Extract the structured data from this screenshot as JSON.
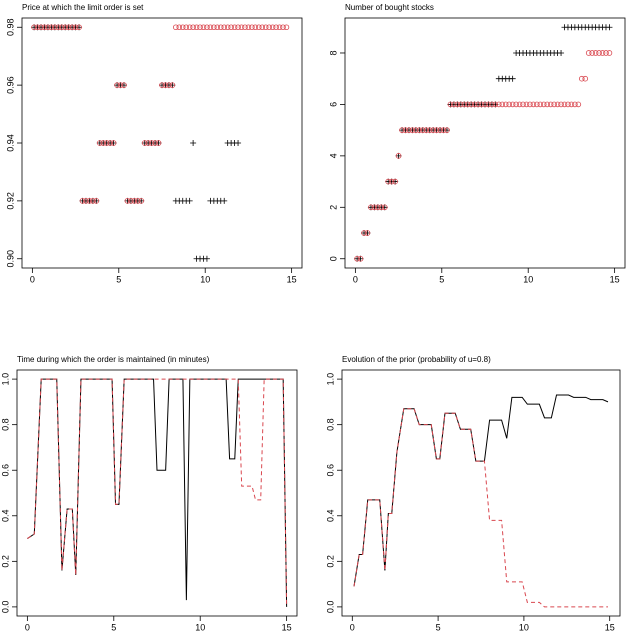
{
  "chart_data": [
    {
      "type": "scatter",
      "title": "Price at which the limit order is set",
      "x": [
        0.1,
        0.3,
        0.5,
        0.7,
        0.9,
        1.1,
        1.3,
        1.5,
        1.7,
        1.9,
        2.1,
        2.3,
        2.5,
        2.7,
        2.9,
        3.1,
        3.3,
        3.5,
        3.7,
        3.9,
        4.1,
        4.3,
        4.5,
        4.7,
        4.9,
        5.1,
        5.3,
        5.5,
        5.7,
        5.9,
        6.1,
        6.3,
        6.5,
        6.7,
        6.9,
        7.1,
        7.3,
        7.5,
        7.7,
        7.9,
        8.1,
        8.3,
        8.5,
        8.7,
        8.9,
        9.1,
        9.3,
        9.5,
        9.7,
        9.9,
        10.1,
        10.3,
        10.5,
        10.7,
        10.9,
        11.1,
        11.3,
        11.5,
        11.7,
        11.9,
        12.1,
        12.3,
        12.5,
        12.7,
        12.9,
        13.1,
        13.3,
        13.5,
        13.7,
        13.9,
        14.1,
        14.3,
        14.5,
        14.7
      ],
      "series": [
        {
          "color": "#000000",
          "marker": "plus",
          "values": [
            0.98,
            0.98,
            0.98,
            0.98,
            0.98,
            0.98,
            0.98,
            0.98,
            0.98,
            0.98,
            0.98,
            0.98,
            0.98,
            0.98,
            0.92,
            0.92,
            0.92,
            0.92,
            0.92,
            0.94,
            0.94,
            0.94,
            0.94,
            0.94,
            0.96,
            0.96,
            0.96,
            0.92,
            0.92,
            0.92,
            0.92,
            0.92,
            0.94,
            0.94,
            0.94,
            0.94,
            0.94,
            0.96,
            0.96,
            0.96,
            0.96,
            0.92,
            0.92,
            0.92,
            0.92,
            0.92,
            0.94,
            0.9,
            0.9,
            0.9,
            0.9,
            0.92,
            0.92,
            0.92,
            0.92,
            0.92,
            0.94,
            0.94,
            0.94,
            0.94,
            null,
            null,
            null,
            null,
            null,
            null,
            null,
            null,
            null,
            null,
            null,
            null,
            null,
            null
          ]
        },
        {
          "color": "#d9474f",
          "marker": "circle",
          "values": [
            0.98,
            0.98,
            0.98,
            0.98,
            0.98,
            0.98,
            0.98,
            0.98,
            0.98,
            0.98,
            0.98,
            0.98,
            0.98,
            0.98,
            0.92,
            0.92,
            0.92,
            0.92,
            0.92,
            0.94,
            0.94,
            0.94,
            0.94,
            0.94,
            0.96,
            0.96,
            0.96,
            0.92,
            0.92,
            0.92,
            0.92,
            0.92,
            0.94,
            0.94,
            0.94,
            0.94,
            0.94,
            0.96,
            0.96,
            0.96,
            0.96,
            0.98,
            0.98,
            0.98,
            0.98,
            0.98,
            0.98,
            0.98,
            0.98,
            0.98,
            0.98,
            0.98,
            0.98,
            0.98,
            0.98,
            0.98,
            0.98,
            0.98,
            0.98,
            0.98,
            0.98,
            0.98,
            0.98,
            0.98,
            0.98,
            0.98,
            0.98,
            0.98,
            0.98,
            0.98,
            0.98,
            0.98,
            0.98,
            0.98
          ]
        }
      ],
      "xlim": [
        -0.6,
        15.6
      ],
      "xticks": [
        0,
        5,
        10,
        15
      ],
      "ylim": [
        0.8968,
        0.9832
      ],
      "yticks": [
        {
          "value": 0.9,
          "label": "0.90"
        },
        0.92,
        0.94,
        0.96,
        0.98
      ]
    },
    {
      "type": "scatter",
      "title": "Number of bought stocks",
      "x": [
        0.1,
        0.3,
        0.5,
        0.7,
        0.9,
        1.1,
        1.3,
        1.5,
        1.7,
        1.9,
        2.1,
        2.3,
        2.5,
        2.7,
        2.9,
        3.1,
        3.3,
        3.5,
        3.7,
        3.9,
        4.1,
        4.3,
        4.5,
        4.7,
        4.9,
        5.1,
        5.3,
        5.5,
        5.7,
        5.9,
        6.1,
        6.3,
        6.5,
        6.7,
        6.9,
        7.1,
        7.3,
        7.5,
        7.7,
        7.9,
        8.1,
        8.3,
        8.5,
        8.7,
        8.9,
        9.1,
        9.3,
        9.5,
        9.7,
        9.9,
        10.1,
        10.3,
        10.5,
        10.7,
        10.9,
        11.1,
        11.3,
        11.5,
        11.7,
        11.9,
        12.1,
        12.3,
        12.5,
        12.7,
        12.9,
        13.1,
        13.3,
        13.5,
        13.7,
        13.9,
        14.1,
        14.3,
        14.5,
        14.7
      ],
      "series": [
        {
          "color": "#000000",
          "marker": "plus",
          "values": [
            0,
            0,
            1,
            1,
            2,
            2,
            2,
            2,
            2,
            3,
            3,
            3,
            4,
            5,
            5,
            5,
            5,
            5,
            5,
            5,
            5,
            5,
            5,
            5,
            5,
            5,
            5,
            6,
            6,
            6,
            6,
            6,
            6,
            6,
            6,
            6,
            6,
            6,
            6,
            6,
            6,
            7,
            7,
            7,
            7,
            7,
            8,
            8,
            8,
            8,
            8,
            8,
            8,
            8,
            8,
            8,
            8,
            8,
            8,
            8,
            9,
            9,
            9,
            9,
            9,
            9,
            9,
            9,
            9,
            9,
            9,
            9,
            9,
            9
          ]
        },
        {
          "color": "#d9474f",
          "marker": "circle",
          "values": [
            0,
            0,
            1,
            1,
            2,
            2,
            2,
            2,
            2,
            3,
            3,
            3,
            4,
            5,
            5,
            5,
            5,
            5,
            5,
            5,
            5,
            5,
            5,
            5,
            5,
            5,
            5,
            6,
            6,
            6,
            6,
            6,
            6,
            6,
            6,
            6,
            6,
            6,
            6,
            6,
            6,
            6,
            6,
            6,
            6,
            6,
            6,
            6,
            6,
            6,
            6,
            6,
            6,
            6,
            6,
            6,
            6,
            6,
            6,
            6,
            6,
            6,
            6,
            6,
            6,
            7,
            7,
            8,
            8,
            8,
            8,
            8,
            8,
            8
          ]
        }
      ],
      "xlim": [
        -0.6,
        15.6
      ],
      "xticks": [
        0,
        5,
        10,
        15
      ],
      "ylim": [
        -0.36,
        9.36
      ],
      "yticks": [
        0,
        2,
        4,
        6,
        8
      ]
    },
    {
      "type": "line",
      "title": "Time during which the order is maintained (in minutes)",
      "x": [
        0,
        0.4,
        0.8,
        1.7,
        2.0,
        2.3,
        2.6,
        2.8,
        3.1,
        4.9,
        5.1,
        5.3,
        5.6,
        7.3,
        7.5,
        8.0,
        8.2,
        9.0,
        9.2,
        9.4,
        11.5,
        11.7,
        12.0,
        12.2,
        12.4,
        13.0,
        13.2,
        13.5,
        13.7,
        14.8,
        15
      ],
      "series": [
        {
          "color": "#000000",
          "dash": "solid",
          "values": [
            0.3,
            0.32,
            1,
            1,
            0.16,
            0.43,
            0.43,
            0.14,
            1,
            1,
            0.45,
            0.45,
            1,
            1,
            0.6,
            0.6,
            1,
            1,
            0.03,
            1,
            1,
            0.65,
            0.65,
            1,
            1,
            1,
            1,
            1,
            1,
            1,
            0
          ]
        },
        {
          "color": "#d9474f",
          "dash": "dashed",
          "values": [
            0.3,
            0.32,
            1,
            1,
            0.16,
            0.43,
            0.43,
            0.14,
            1,
            1,
            0.45,
            0.45,
            1,
            1,
            1,
            1,
            1,
            1,
            1,
            1,
            1,
            1,
            1,
            1,
            0.53,
            0.53,
            0.47,
            0.47,
            1,
            1,
            0
          ]
        }
      ],
      "xlim": [
        -0.6,
        15.6
      ],
      "xticks": [
        0,
        5,
        10,
        15
      ],
      "ylim": [
        -0.04,
        1.04
      ],
      "yticks": [
        {
          "value": 0,
          "label": "0.0"
        },
        0.2,
        0.4,
        0.6,
        0.8,
        {
          "value": 1,
          "label": "1.0"
        }
      ]
    },
    {
      "type": "line",
      "title": "Evolution of the prior (probability of u=0.8)",
      "x": [
        0.1,
        0.4,
        0.6,
        0.9,
        1.6,
        1.9,
        2.1,
        2.3,
        2.6,
        3.0,
        3.6,
        3.9,
        4.6,
        4.9,
        5.1,
        5.4,
        6.0,
        6.3,
        6.9,
        7.2,
        7.7,
        8.0,
        8.7,
        9.0,
        9.3,
        9.9,
        10.2,
        10.9,
        11.2,
        11.6,
        11.9,
        12.6,
        12.9,
        13.6,
        13.9,
        14.6,
        14.9
      ],
      "series": [
        {
          "color": "#000000",
          "dash": "solid",
          "values": [
            0.09,
            0.23,
            0.23,
            0.47,
            0.47,
            0.16,
            0.41,
            0.41,
            0.68,
            0.87,
            0.87,
            0.8,
            0.8,
            0.65,
            0.65,
            0.85,
            0.85,
            0.78,
            0.78,
            0.64,
            0.64,
            0.82,
            0.82,
            0.74,
            0.92,
            0.92,
            0.89,
            0.89,
            0.83,
            0.83,
            0.93,
            0.93,
            0.92,
            0.92,
            0.91,
            0.91,
            0.9
          ]
        },
        {
          "color": "#d9474f",
          "dash": "dashed",
          "values": [
            0.09,
            0.23,
            0.23,
            0.47,
            0.47,
            0.16,
            0.41,
            0.41,
            0.68,
            0.87,
            0.87,
            0.8,
            0.8,
            0.65,
            0.65,
            0.85,
            0.85,
            0.78,
            0.78,
            0.64,
            0.64,
            0.38,
            0.38,
            0.11,
            0.11,
            0.11,
            0.02,
            0.02,
            0,
            0,
            0,
            0,
            0,
            0,
            0,
            0,
            0
          ]
        }
      ],
      "xlim": [
        -0.6,
        15.6
      ],
      "xticks": [
        0,
        5,
        10,
        15
      ],
      "ylim": [
        -0.04,
        1.04
      ],
      "yticks": [
        {
          "value": 0,
          "label": "0.0"
        },
        0.2,
        0.4,
        0.6,
        0.8,
        {
          "value": 1,
          "label": "1.0"
        }
      ]
    }
  ]
}
